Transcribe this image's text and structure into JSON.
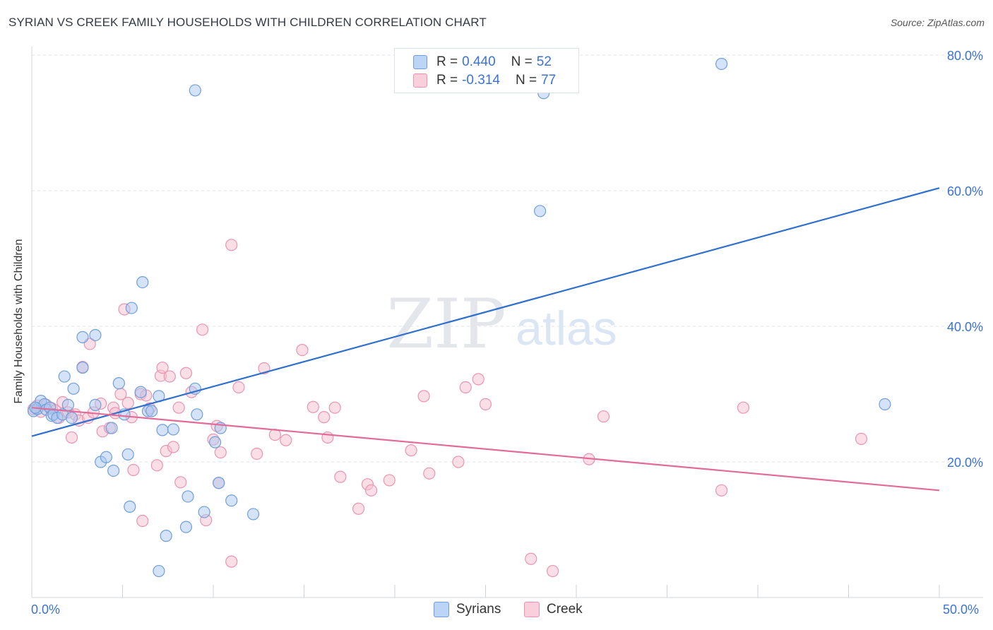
{
  "title": "SYRIAN VS CREEK FAMILY HOUSEHOLDS WITH CHILDREN CORRELATION CHART",
  "source": "Source: ZipAtlas.com",
  "watermark": {
    "zip": "ZIP",
    "atlas": "atlas"
  },
  "legend": {
    "rows": [
      {
        "r_label": "R =",
        "r_value": "0.440",
        "n_label": "N =",
        "n_value": "52"
      },
      {
        "r_label": "R =",
        "r_value": "-0.314",
        "n_label": "N =",
        "n_value": "77"
      }
    ]
  },
  "bottom_legend": {
    "series1": "Syrians",
    "series2": "Creek"
  },
  "axis": {
    "x_min_label": "0.0%",
    "x_max_label": "50.0%"
  },
  "colors": {
    "syrians_fill": "#aac8f0",
    "syrians_stroke": "#6f9fdc",
    "syrians_line": "#2f6fcf",
    "creek_fill": "#f6bfd0",
    "creek_stroke": "#eb94b2",
    "creek_line": "#e36b97",
    "tick_label": "#3b73d1"
  },
  "chart_data": {
    "type": "scatter",
    "title": "SYRIAN VS CREEK FAMILY HOUSEHOLDS WITH CHILDREN CORRELATION CHART",
    "xlabel": "",
    "ylabel": "Family Households with Children",
    "xlim": [
      0,
      50
    ],
    "ylim": [
      0,
      80
    ],
    "y_ticks": [
      20,
      40,
      60,
      80
    ],
    "y_tick_labels": [
      "20.0%",
      "40.0%",
      "60.0%",
      "80.0%"
    ],
    "x_tick_labels": [
      "0.0%",
      "50.0%"
    ],
    "series": [
      {
        "name": "Syrians",
        "r": 0.44,
        "n": 52,
        "trend": {
          "x": [
            0,
            50
          ],
          "y": [
            23.8,
            60.4
          ]
        },
        "points": [
          [
            0.1,
            27.5
          ],
          [
            0.3,
            27.8
          ],
          [
            0.5,
            29.0
          ],
          [
            0.7,
            28.5
          ],
          [
            0.8,
            27.7
          ],
          [
            1.0,
            28.0
          ],
          [
            1.1,
            26.8
          ],
          [
            1.2,
            27.0
          ],
          [
            1.4,
            26.5
          ],
          [
            1.7,
            27.0
          ],
          [
            2.0,
            28.4
          ],
          [
            2.2,
            26.5
          ],
          [
            1.8,
            32.6
          ],
          [
            2.3,
            30.8
          ],
          [
            2.8,
            38.4
          ],
          [
            3.5,
            38.7
          ],
          [
            2.8,
            33.9
          ],
          [
            3.5,
            28.4
          ],
          [
            3.8,
            20.0
          ],
          [
            4.1,
            20.7
          ],
          [
            4.4,
            25.0
          ],
          [
            4.5,
            18.7
          ],
          [
            4.8,
            31.6
          ],
          [
            5.1,
            27.0
          ],
          [
            5.3,
            21.1
          ],
          [
            5.4,
            13.4
          ],
          [
            5.5,
            42.7
          ],
          [
            6.0,
            30.3
          ],
          [
            6.1,
            46.5
          ],
          [
            6.4,
            27.5
          ],
          [
            6.6,
            27.5
          ],
          [
            7.0,
            29.7
          ],
          [
            7.2,
            24.7
          ],
          [
            7.4,
            9.1
          ],
          [
            7.0,
            3.9
          ],
          [
            7.8,
            24.8
          ],
          [
            8.5,
            10.4
          ],
          [
            8.6,
            14.9
          ],
          [
            9.0,
            30.8
          ],
          [
            9.1,
            27.0
          ],
          [
            9.5,
            12.6
          ],
          [
            10.1,
            22.9
          ],
          [
            10.3,
            16.9
          ],
          [
            10.4,
            25.0
          ],
          [
            11.0,
            14.3
          ],
          [
            12.2,
            12.3
          ],
          [
            9.0,
            74.8
          ],
          [
            28.0,
            57.0
          ],
          [
            28.2,
            74.4
          ],
          [
            38.0,
            78.7
          ],
          [
            47.0,
            28.5
          ],
          [
            0.2,
            28.0
          ]
        ]
      },
      {
        "name": "Creek",
        "r": -0.314,
        "n": 77,
        "trend": {
          "x": [
            0,
            50
          ],
          "y": [
            28.0,
            15.8
          ]
        },
        "points": [
          [
            0.1,
            27.8
          ],
          [
            0.3,
            28.3
          ],
          [
            0.5,
            27.4
          ],
          [
            0.8,
            28.4
          ],
          [
            1.1,
            27.9
          ],
          [
            1.3,
            27.6
          ],
          [
            1.5,
            26.5
          ],
          [
            1.7,
            28.8
          ],
          [
            2.0,
            27.3
          ],
          [
            2.2,
            23.6
          ],
          [
            2.4,
            27.0
          ],
          [
            2.6,
            26.1
          ],
          [
            2.8,
            34.0
          ],
          [
            3.1,
            26.5
          ],
          [
            3.2,
            37.4
          ],
          [
            3.4,
            27.3
          ],
          [
            3.8,
            28.6
          ],
          [
            3.9,
            24.5
          ],
          [
            4.3,
            25.0
          ],
          [
            4.5,
            28.0
          ],
          [
            4.6,
            27.2
          ],
          [
            4.9,
            30.0
          ],
          [
            5.1,
            42.5
          ],
          [
            5.3,
            28.7
          ],
          [
            5.5,
            26.6
          ],
          [
            5.6,
            18.8
          ],
          [
            6.0,
            30.0
          ],
          [
            6.1,
            11.3
          ],
          [
            6.3,
            29.8
          ],
          [
            6.5,
            27.9
          ],
          [
            6.9,
            19.5
          ],
          [
            7.1,
            32.7
          ],
          [
            7.2,
            33.9
          ],
          [
            7.4,
            21.6
          ],
          [
            7.6,
            32.6
          ],
          [
            7.8,
            22.2
          ],
          [
            8.1,
            28.0
          ],
          [
            8.2,
            17.0
          ],
          [
            8.5,
            33.1
          ],
          [
            8.8,
            30.3
          ],
          [
            9.4,
            39.5
          ],
          [
            9.6,
            11.4
          ],
          [
            10.0,
            23.3
          ],
          [
            10.4,
            21.4
          ],
          [
            10.3,
            16.9
          ],
          [
            10.2,
            25.3
          ],
          [
            11.0,
            5.3
          ],
          [
            11.4,
            31.0
          ],
          [
            12.4,
            21.2
          ],
          [
            12.8,
            33.8
          ],
          [
            13.4,
            24.0
          ],
          [
            14.0,
            23.2
          ],
          [
            14.9,
            36.5
          ],
          [
            15.5,
            28.1
          ],
          [
            16.1,
            26.6
          ],
          [
            16.3,
            23.6
          ],
          [
            16.7,
            28.0
          ],
          [
            17.0,
            17.8
          ],
          [
            18.0,
            13.1
          ],
          [
            18.5,
            16.7
          ],
          [
            18.7,
            15.8
          ],
          [
            19.7,
            17.3
          ],
          [
            20.9,
            21.7
          ],
          [
            21.6,
            29.7
          ],
          [
            21.9,
            18.3
          ],
          [
            23.5,
            20.0
          ],
          [
            23.9,
            31.0
          ],
          [
            24.6,
            32.2
          ],
          [
            25.0,
            28.5
          ],
          [
            27.5,
            5.7
          ],
          [
            28.7,
            3.9
          ],
          [
            30.7,
            20.4
          ],
          [
            31.5,
            26.7
          ],
          [
            38.0,
            15.8
          ],
          [
            39.2,
            28.0
          ],
          [
            45.7,
            23.4
          ],
          [
            11.0,
            52.0
          ]
        ]
      }
    ]
  }
}
